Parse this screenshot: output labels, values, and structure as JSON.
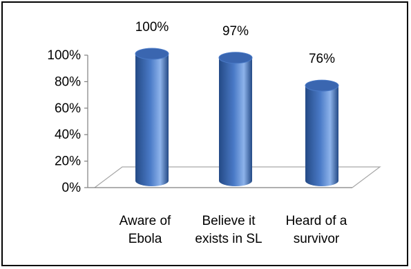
{
  "chart_data": {
    "type": "bar",
    "style": "3d-cylinder",
    "categories": [
      [
        "Aware of",
        "Ebola"
      ],
      [
        "Believe it",
        "exists in SL"
      ],
      [
        "Heard of a",
        "survivor"
      ]
    ],
    "values": [
      100,
      97,
      76
    ],
    "data_labels": [
      "100%",
      "97%",
      "76%"
    ],
    "y_ticks": [
      "0%",
      "20%",
      "40%",
      "60%",
      "80%",
      "100%"
    ],
    "ylim": [
      0,
      100
    ],
    "grid": false,
    "legend": "none",
    "colors": {
      "bar_dark": "#244a86",
      "bar_mid": "#4a7ac7",
      "bar_light": "#8db3ea",
      "bar_top": "#3a66b0",
      "floor_line": "#a6a6a6",
      "axis": "#7f7f7f"
    }
  }
}
